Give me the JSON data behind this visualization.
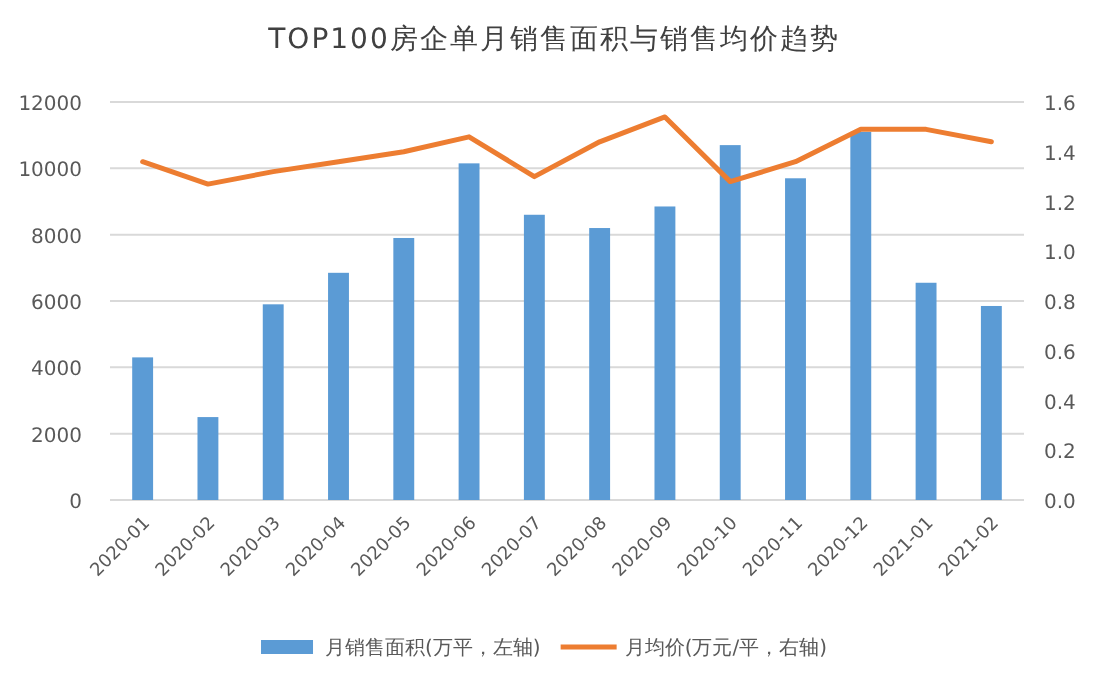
{
  "chart_data": {
    "type": "bar",
    "title": "TOP100房企单月销售面积与销售均价趋势",
    "categories": [
      "2020-01",
      "2020-02",
      "2020-03",
      "2020-04",
      "2020-05",
      "2020-06",
      "2020-07",
      "2020-08",
      "2020-09",
      "2020-10",
      "2020-11",
      "2020-12",
      "2021-01",
      "2021-02"
    ],
    "series": [
      {
        "name": "月销售面积(万平，左轴)",
        "color": "#5b9bd5",
        "values": [
          4300,
          2500,
          5900,
          6850,
          7900,
          10150,
          8600,
          8200,
          8850,
          10700,
          9700,
          11100,
          6550,
          5850
        ]
      },
      {
        "name": "月均价(万元/平，右轴)",
        "type": "line",
        "axis": "y2",
        "color": "#ed7d31",
        "values": [
          1.36,
          1.27,
          1.32,
          1.36,
          1.4,
          1.46,
          1.3,
          1.44,
          1.54,
          1.28,
          1.36,
          1.49,
          1.49,
          1.44
        ]
      }
    ],
    "ylim": [
      0,
      12000
    ],
    "yticks": [
      0,
      2000,
      4000,
      6000,
      8000,
      10000,
      12000
    ],
    "y2lim": [
      0,
      1.6
    ],
    "y2ticks": [
      {
        "value": 0,
        "label": "0.0"
      },
      0.2,
      0.4,
      0.6,
      0.8,
      {
        "value": 1,
        "label": "1.0"
      },
      1.2,
      1.4,
      1.6
    ],
    "grid": "y",
    "legend": "bottom",
    "marker": "none",
    "line_style": "solid"
  }
}
